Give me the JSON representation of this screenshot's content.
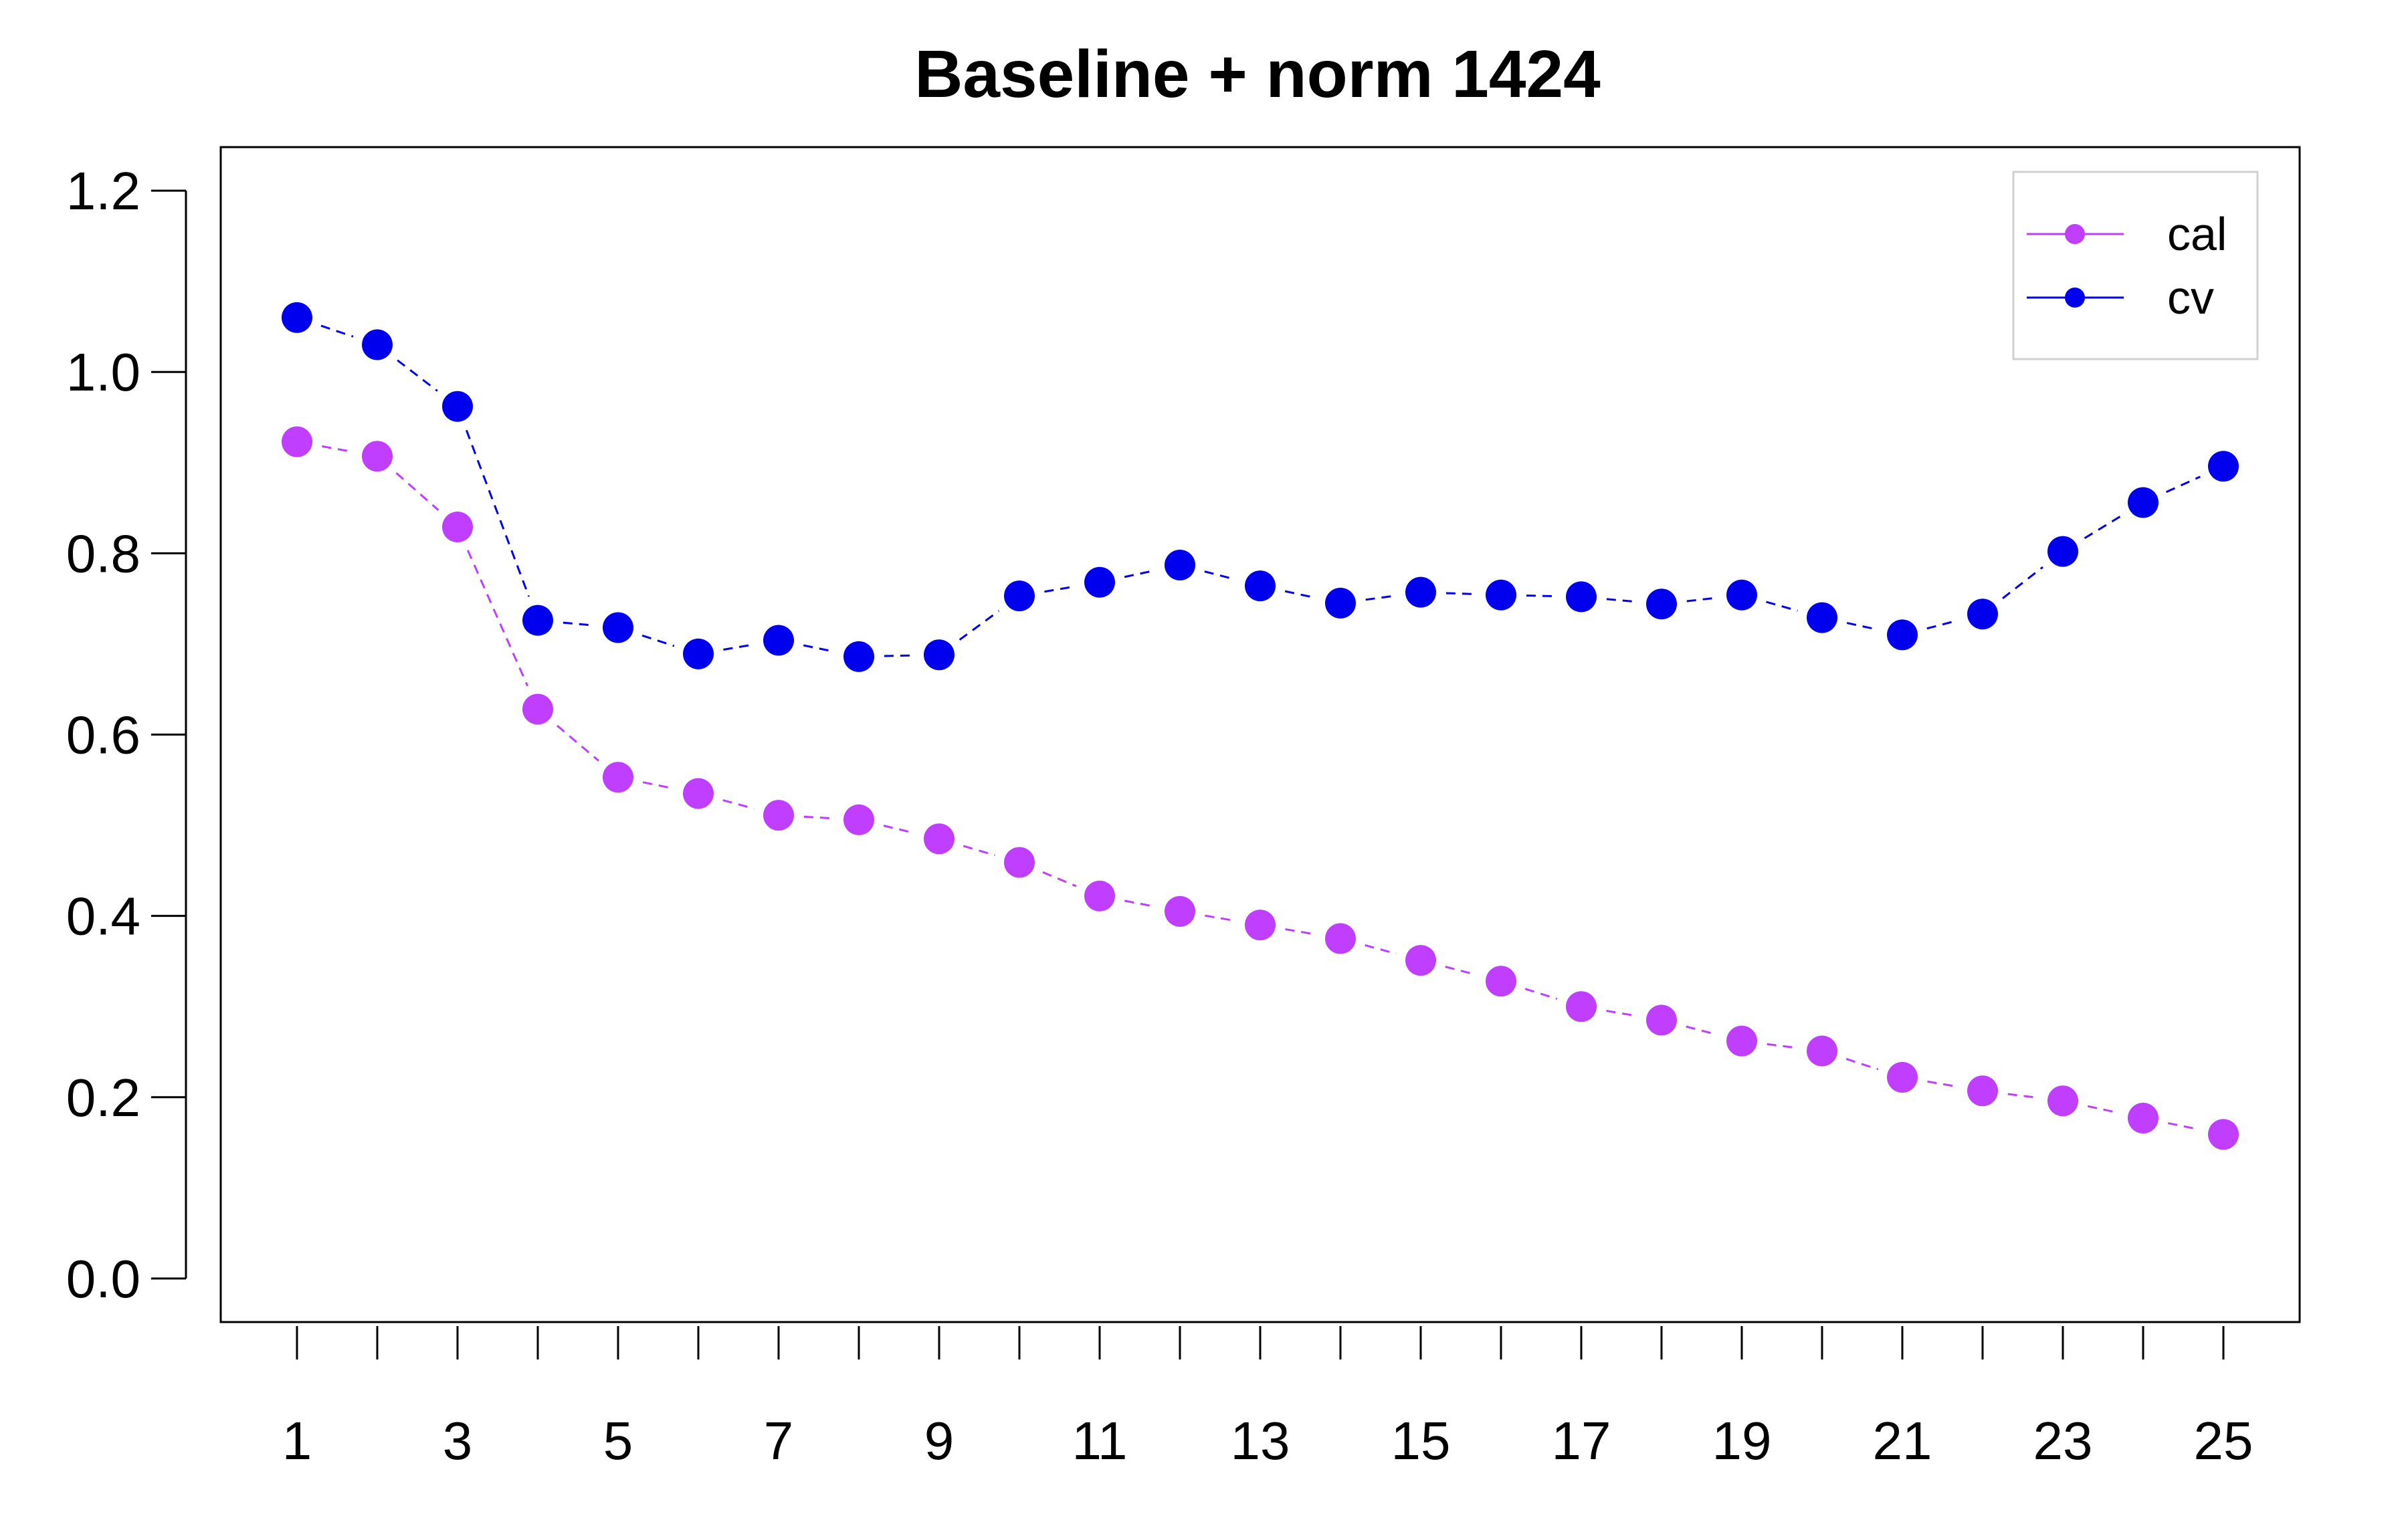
{
  "chart_data": {
    "type": "line",
    "title": "Baseline + norm 1424",
    "xlabel": "",
    "ylabel": "",
    "x": [
      1,
      2,
      3,
      4,
      5,
      6,
      7,
      8,
      9,
      10,
      11,
      12,
      13,
      14,
      15,
      16,
      17,
      18,
      19,
      20,
      21,
      22,
      23,
      24,
      25
    ],
    "xlim": [
      0.05,
      25.95
    ],
    "ylim": [
      -0.048,
      1.248
    ],
    "x_ticks": [
      1,
      2,
      3,
      4,
      5,
      6,
      7,
      8,
      9,
      10,
      11,
      12,
      13,
      14,
      15,
      16,
      17,
      18,
      19,
      20,
      21,
      22,
      23,
      24,
      25
    ],
    "x_tick_labels": [
      "1",
      "3",
      "5",
      "7",
      "9",
      "11",
      "13",
      "15",
      "17",
      "19",
      "21",
      "23",
      "25"
    ],
    "x_tick_label_values": [
      1,
      3,
      5,
      7,
      9,
      11,
      13,
      15,
      17,
      19,
      21,
      23,
      25
    ],
    "y_ticks": [
      0.0,
      0.2,
      0.4,
      0.6,
      0.8,
      1.0,
      1.2
    ],
    "y_tick_labels": [
      "0.0",
      "0.2",
      "0.4",
      "0.6",
      "0.8",
      "1.0",
      "1.2"
    ],
    "grid": false,
    "legend_position": "top-right",
    "series": [
      {
        "name": "cal",
        "color": "#bf3eff",
        "values": [
          0.923,
          0.907,
          0.829,
          0.628,
          0.553,
          0.535,
          0.511,
          0.506,
          0.485,
          0.459,
          0.422,
          0.405,
          0.39,
          0.375,
          0.351,
          0.328,
          0.3,
          0.285,
          0.262,
          0.251,
          0.222,
          0.207,
          0.196,
          0.177,
          0.159
        ]
      },
      {
        "name": "cv",
        "color": "#0000ee",
        "values": [
          1.06,
          1.03,
          0.962,
          0.726,
          0.718,
          0.689,
          0.704,
          0.686,
          0.688,
          0.753,
          0.768,
          0.787,
          0.764,
          0.745,
          0.757,
          0.754,
          0.752,
          0.744,
          0.754,
          0.729,
          0.71,
          0.733,
          0.802,
          0.856,
          0.896
        ]
      }
    ]
  }
}
